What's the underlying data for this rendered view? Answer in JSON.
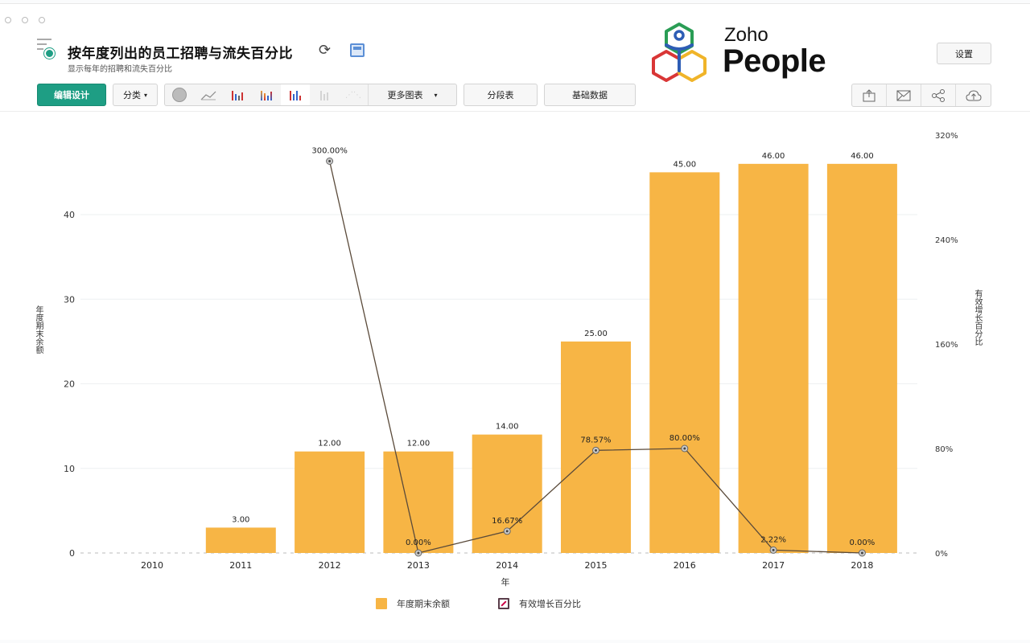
{
  "header": {
    "title": "按年度列出的员工招聘与流失百分比",
    "subtitle": "显示每年的招聘和流失百分比",
    "settings_label": "设置"
  },
  "logo": {
    "brand_small": "Zoho",
    "brand_big": "People"
  },
  "toolbar": {
    "edit_design_label": "编辑设计",
    "category_label": "分类",
    "more_charts_label": "更多图表",
    "pivot_label": "分段表",
    "underlying_data_label": "基础数据",
    "chart_type_icons": [
      "pie-icon",
      "line-chart-icon",
      "bar-chart-icon",
      "stacked-bar-icon",
      "combo-chart-icon",
      "scatter-icon",
      "map-icon"
    ]
  },
  "actions": {
    "icons": [
      "export-icon",
      "email-icon",
      "share-icon",
      "publish-cloud-icon"
    ]
  },
  "colors": {
    "accent": "#1e9e84",
    "bar": "#f7b545",
    "line": "#5a4a3a"
  },
  "chart_data": {
    "type": "bar+line",
    "title": "按年度列出的员工招聘与流失百分比",
    "xlabel": "年",
    "ylabel": "年度期末余额",
    "y2label": "有效增长百分比",
    "categories": [
      "2010",
      "2011",
      "2012",
      "2013",
      "2014",
      "2015",
      "2016",
      "2017",
      "2018"
    ],
    "series": [
      {
        "name": "年度期末余额",
        "type": "bar",
        "axis": "left",
        "values": [
          0,
          3,
          12,
          12,
          14,
          25,
          45,
          46,
          46
        ],
        "labels": [
          "",
          "3.00",
          "12.00",
          "12.00",
          "14.00",
          "25.00",
          "45.00",
          "46.00",
          "46.00"
        ]
      },
      {
        "name": "有效增长百分比",
        "type": "line",
        "axis": "right",
        "values": [
          null,
          null,
          300.0,
          0.0,
          16.67,
          78.57,
          80.0,
          2.22,
          0.0
        ],
        "labels": [
          "",
          "",
          "300.00%",
          "0.00%",
          "16.67%",
          "78.57%",
          "80.00%",
          "2.22%",
          "0.00%"
        ]
      }
    ],
    "ylim": [
      0,
      50
    ],
    "yticks": [
      0,
      10,
      20,
      30,
      40
    ],
    "y2lim": [
      0,
      320
    ],
    "y2ticks": [
      "0%",
      "80%",
      "160%",
      "240%",
      "320%"
    ],
    "legend_position": "bottom",
    "grid": true
  }
}
